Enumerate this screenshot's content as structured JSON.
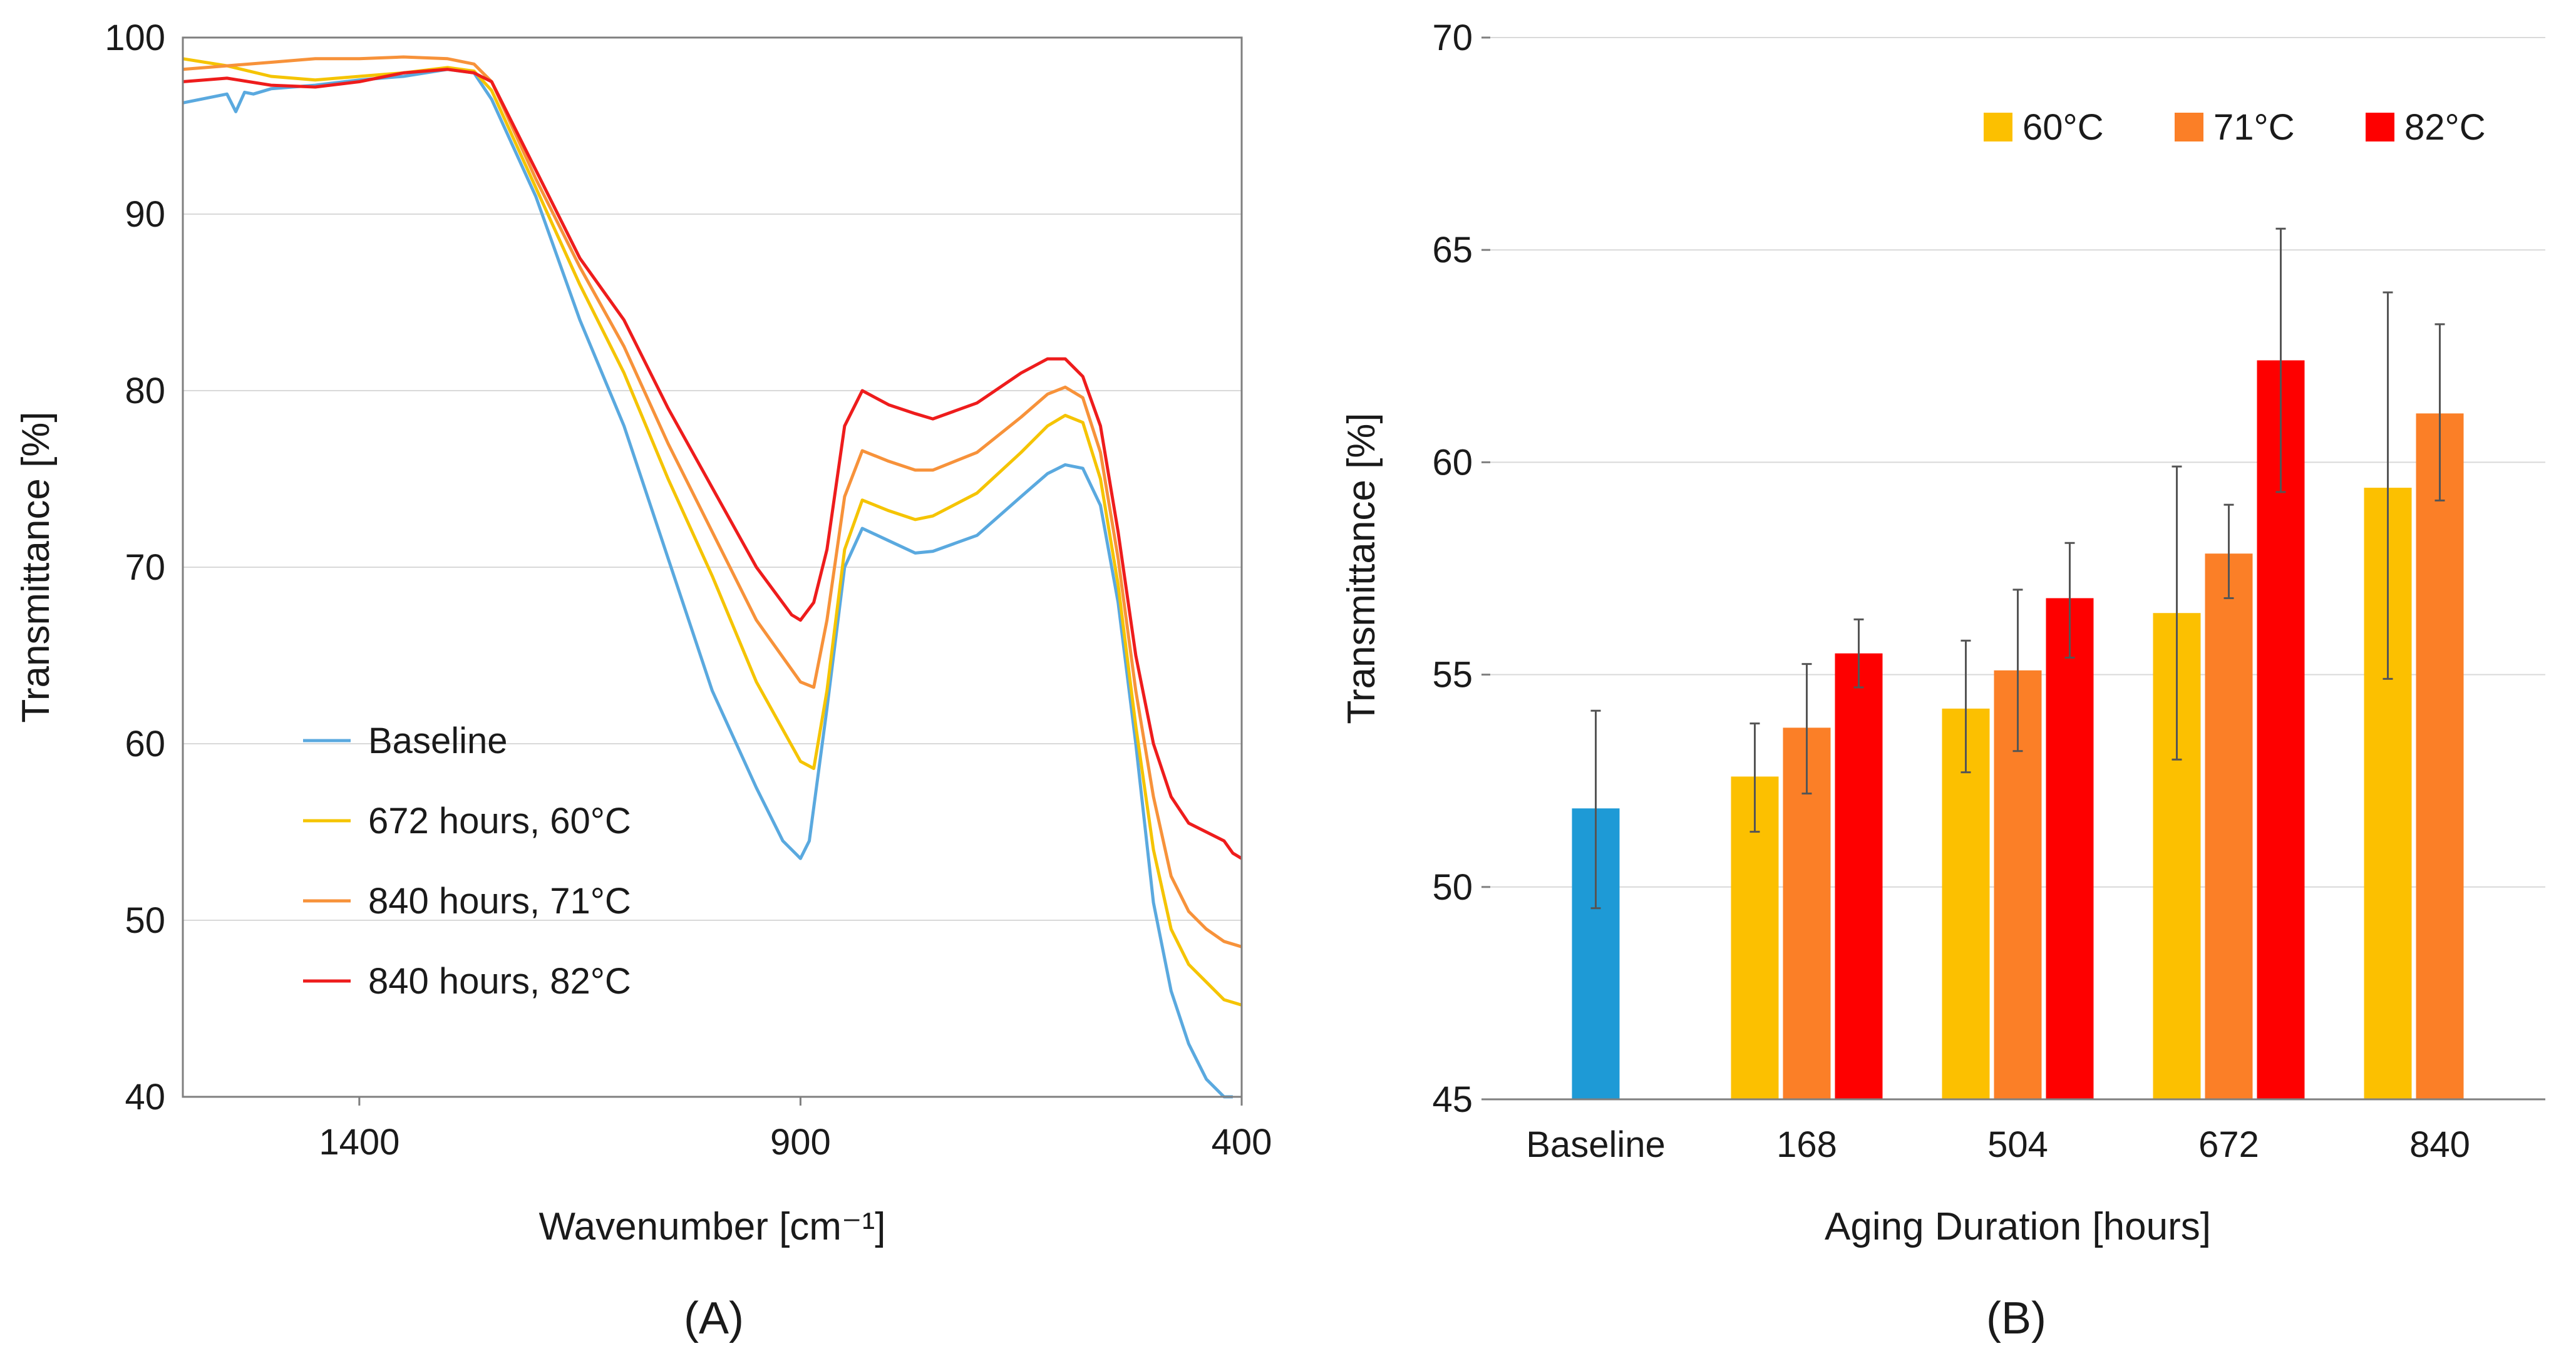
{
  "chart_data": [
    {
      "type": "line",
      "panel_label": "(A)",
      "xlabel": "Wavenumber [cm⁻¹]",
      "ylabel": "Transmittance [%]",
      "xlim": [
        1600,
        400
      ],
      "ylim": [
        40,
        100
      ],
      "x_ticks": [
        1400,
        900,
        400
      ],
      "y_ticks": [
        40,
        50,
        60,
        70,
        80,
        90,
        100
      ],
      "grid": "horizontal",
      "legend_position": "lower-left",
      "series": [
        {
          "name": "Baseline",
          "color": "#5aa9df",
          "x": [
            1600,
            1550,
            1540,
            1530,
            1520,
            1500,
            1450,
            1400,
            1350,
            1300,
            1270,
            1250,
            1200,
            1150,
            1100,
            1050,
            1000,
            950,
            920,
            900,
            890,
            870,
            850,
            830,
            800,
            770,
            750,
            700,
            650,
            620,
            600,
            580,
            560,
            540,
            520,
            500,
            480,
            460,
            440,
            420,
            410
          ],
          "y": [
            96.3,
            96.8,
            95.8,
            96.9,
            96.8,
            97.1,
            97.3,
            97.6,
            97.8,
            98.2,
            98.0,
            96.5,
            91.0,
            84.0,
            78.0,
            70.5,
            63.0,
            57.5,
            54.5,
            53.5,
            54.5,
            62.0,
            70.0,
            72.2,
            71.5,
            70.8,
            70.9,
            71.8,
            74.0,
            75.3,
            75.8,
            75.6,
            73.5,
            68.0,
            60.0,
            51.0,
            46.0,
            43.0,
            41.0,
            40.0,
            39.8
          ]
        },
        {
          "name": "672 hours, 60°C",
          "color": "#f5c400",
          "x": [
            1600,
            1550,
            1500,
            1450,
            1400,
            1350,
            1300,
            1270,
            1250,
            1200,
            1150,
            1100,
            1050,
            1000,
            950,
            900,
            885,
            870,
            850,
            830,
            800,
            770,
            750,
            700,
            650,
            620,
            600,
            580,
            560,
            540,
            520,
            500,
            480,
            460,
            440,
            420,
            400
          ],
          "y": [
            98.8,
            98.4,
            97.8,
            97.6,
            97.8,
            98.0,
            98.3,
            98.1,
            97.0,
            91.5,
            86.0,
            81.0,
            75.0,
            69.5,
            63.5,
            59.0,
            58.6,
            63.0,
            71.0,
            73.8,
            73.2,
            72.7,
            72.9,
            74.2,
            76.5,
            78.0,
            78.6,
            78.2,
            75.0,
            69.0,
            61.0,
            54.0,
            49.5,
            47.5,
            46.5,
            45.5,
            45.2
          ]
        },
        {
          "name": "840 hours, 71°C",
          "color": "#f7923a",
          "x": [
            1600,
            1550,
            1500,
            1450,
            1400,
            1350,
            1300,
            1270,
            1250,
            1200,
            1150,
            1100,
            1050,
            1000,
            950,
            900,
            885,
            870,
            850,
            830,
            800,
            770,
            750,
            700,
            650,
            620,
            600,
            580,
            560,
            540,
            520,
            500,
            480,
            460,
            440,
            420,
            400
          ],
          "y": [
            98.2,
            98.4,
            98.6,
            98.8,
            98.8,
            98.9,
            98.8,
            98.5,
            97.5,
            92.0,
            87.0,
            82.5,
            77.0,
            72.0,
            67.0,
            63.5,
            63.2,
            67.0,
            74.0,
            76.6,
            76.0,
            75.5,
            75.5,
            76.5,
            78.5,
            79.8,
            80.2,
            79.6,
            76.5,
            70.5,
            63.0,
            57.0,
            52.5,
            50.5,
            49.5,
            48.8,
            48.5
          ]
        },
        {
          "name": "840 hours, 82°C",
          "color": "#ee1c1c",
          "x": [
            1600,
            1550,
            1500,
            1450,
            1400,
            1350,
            1300,
            1270,
            1250,
            1200,
            1150,
            1100,
            1050,
            1000,
            950,
            910,
            900,
            885,
            870,
            850,
            830,
            800,
            770,
            750,
            700,
            650,
            620,
            600,
            580,
            560,
            540,
            520,
            500,
            480,
            460,
            440,
            420,
            410,
            400
          ],
          "y": [
            97.5,
            97.7,
            97.3,
            97.2,
            97.5,
            98.0,
            98.2,
            98.0,
            97.5,
            92.5,
            87.5,
            84.0,
            79.0,
            74.5,
            70.0,
            67.3,
            67.0,
            68.0,
            71.0,
            78.0,
            80.0,
            79.2,
            78.7,
            78.4,
            79.3,
            81.0,
            81.8,
            81.8,
            80.8,
            78.0,
            72.0,
            65.0,
            60.0,
            57.0,
            55.5,
            55.0,
            54.5,
            53.8,
            53.5
          ]
        }
      ]
    },
    {
      "type": "bar",
      "panel_label": "(B)",
      "xlabel": "Aging Duration [hours]",
      "ylabel": "Transmittance [%]",
      "ylim": [
        45,
        70
      ],
      "y_ticks": [
        45,
        50,
        55,
        60,
        65,
        70
      ],
      "grid": "horizontal",
      "legend_position": "top-right",
      "categories": [
        "Baseline",
        "168",
        "504",
        "672",
        "840"
      ],
      "baseline_bar": {
        "name": "Baseline",
        "color": "#1e9ad6",
        "value": 51.85,
        "err_low": 49.5,
        "err_high": 54.15
      },
      "series": [
        {
          "name": "60°C",
          "color": "#fcc000",
          "values": [
            null,
            52.6,
            54.2,
            56.45,
            59.4
          ],
          "err_low": [
            null,
            51.3,
            52.7,
            53.0,
            54.9
          ],
          "err_high": [
            null,
            53.85,
            55.8,
            59.9,
            64.0
          ]
        },
        {
          "name": "71°C",
          "color": "#fb7f27",
          "values": [
            null,
            53.75,
            55.1,
            57.85,
            61.15
          ],
          "err_low": [
            null,
            52.2,
            53.2,
            56.8,
            59.1
          ],
          "err_high": [
            null,
            55.25,
            57.0,
            59.0,
            63.25
          ]
        },
        {
          "name": "82°C",
          "color": "#fe0000",
          "values": [
            null,
            55.5,
            56.8,
            62.4,
            null
          ],
          "err_low": [
            null,
            54.7,
            55.4,
            59.3,
            null
          ],
          "err_high": [
            null,
            56.3,
            58.1,
            65.5,
            null
          ]
        }
      ]
    }
  ]
}
